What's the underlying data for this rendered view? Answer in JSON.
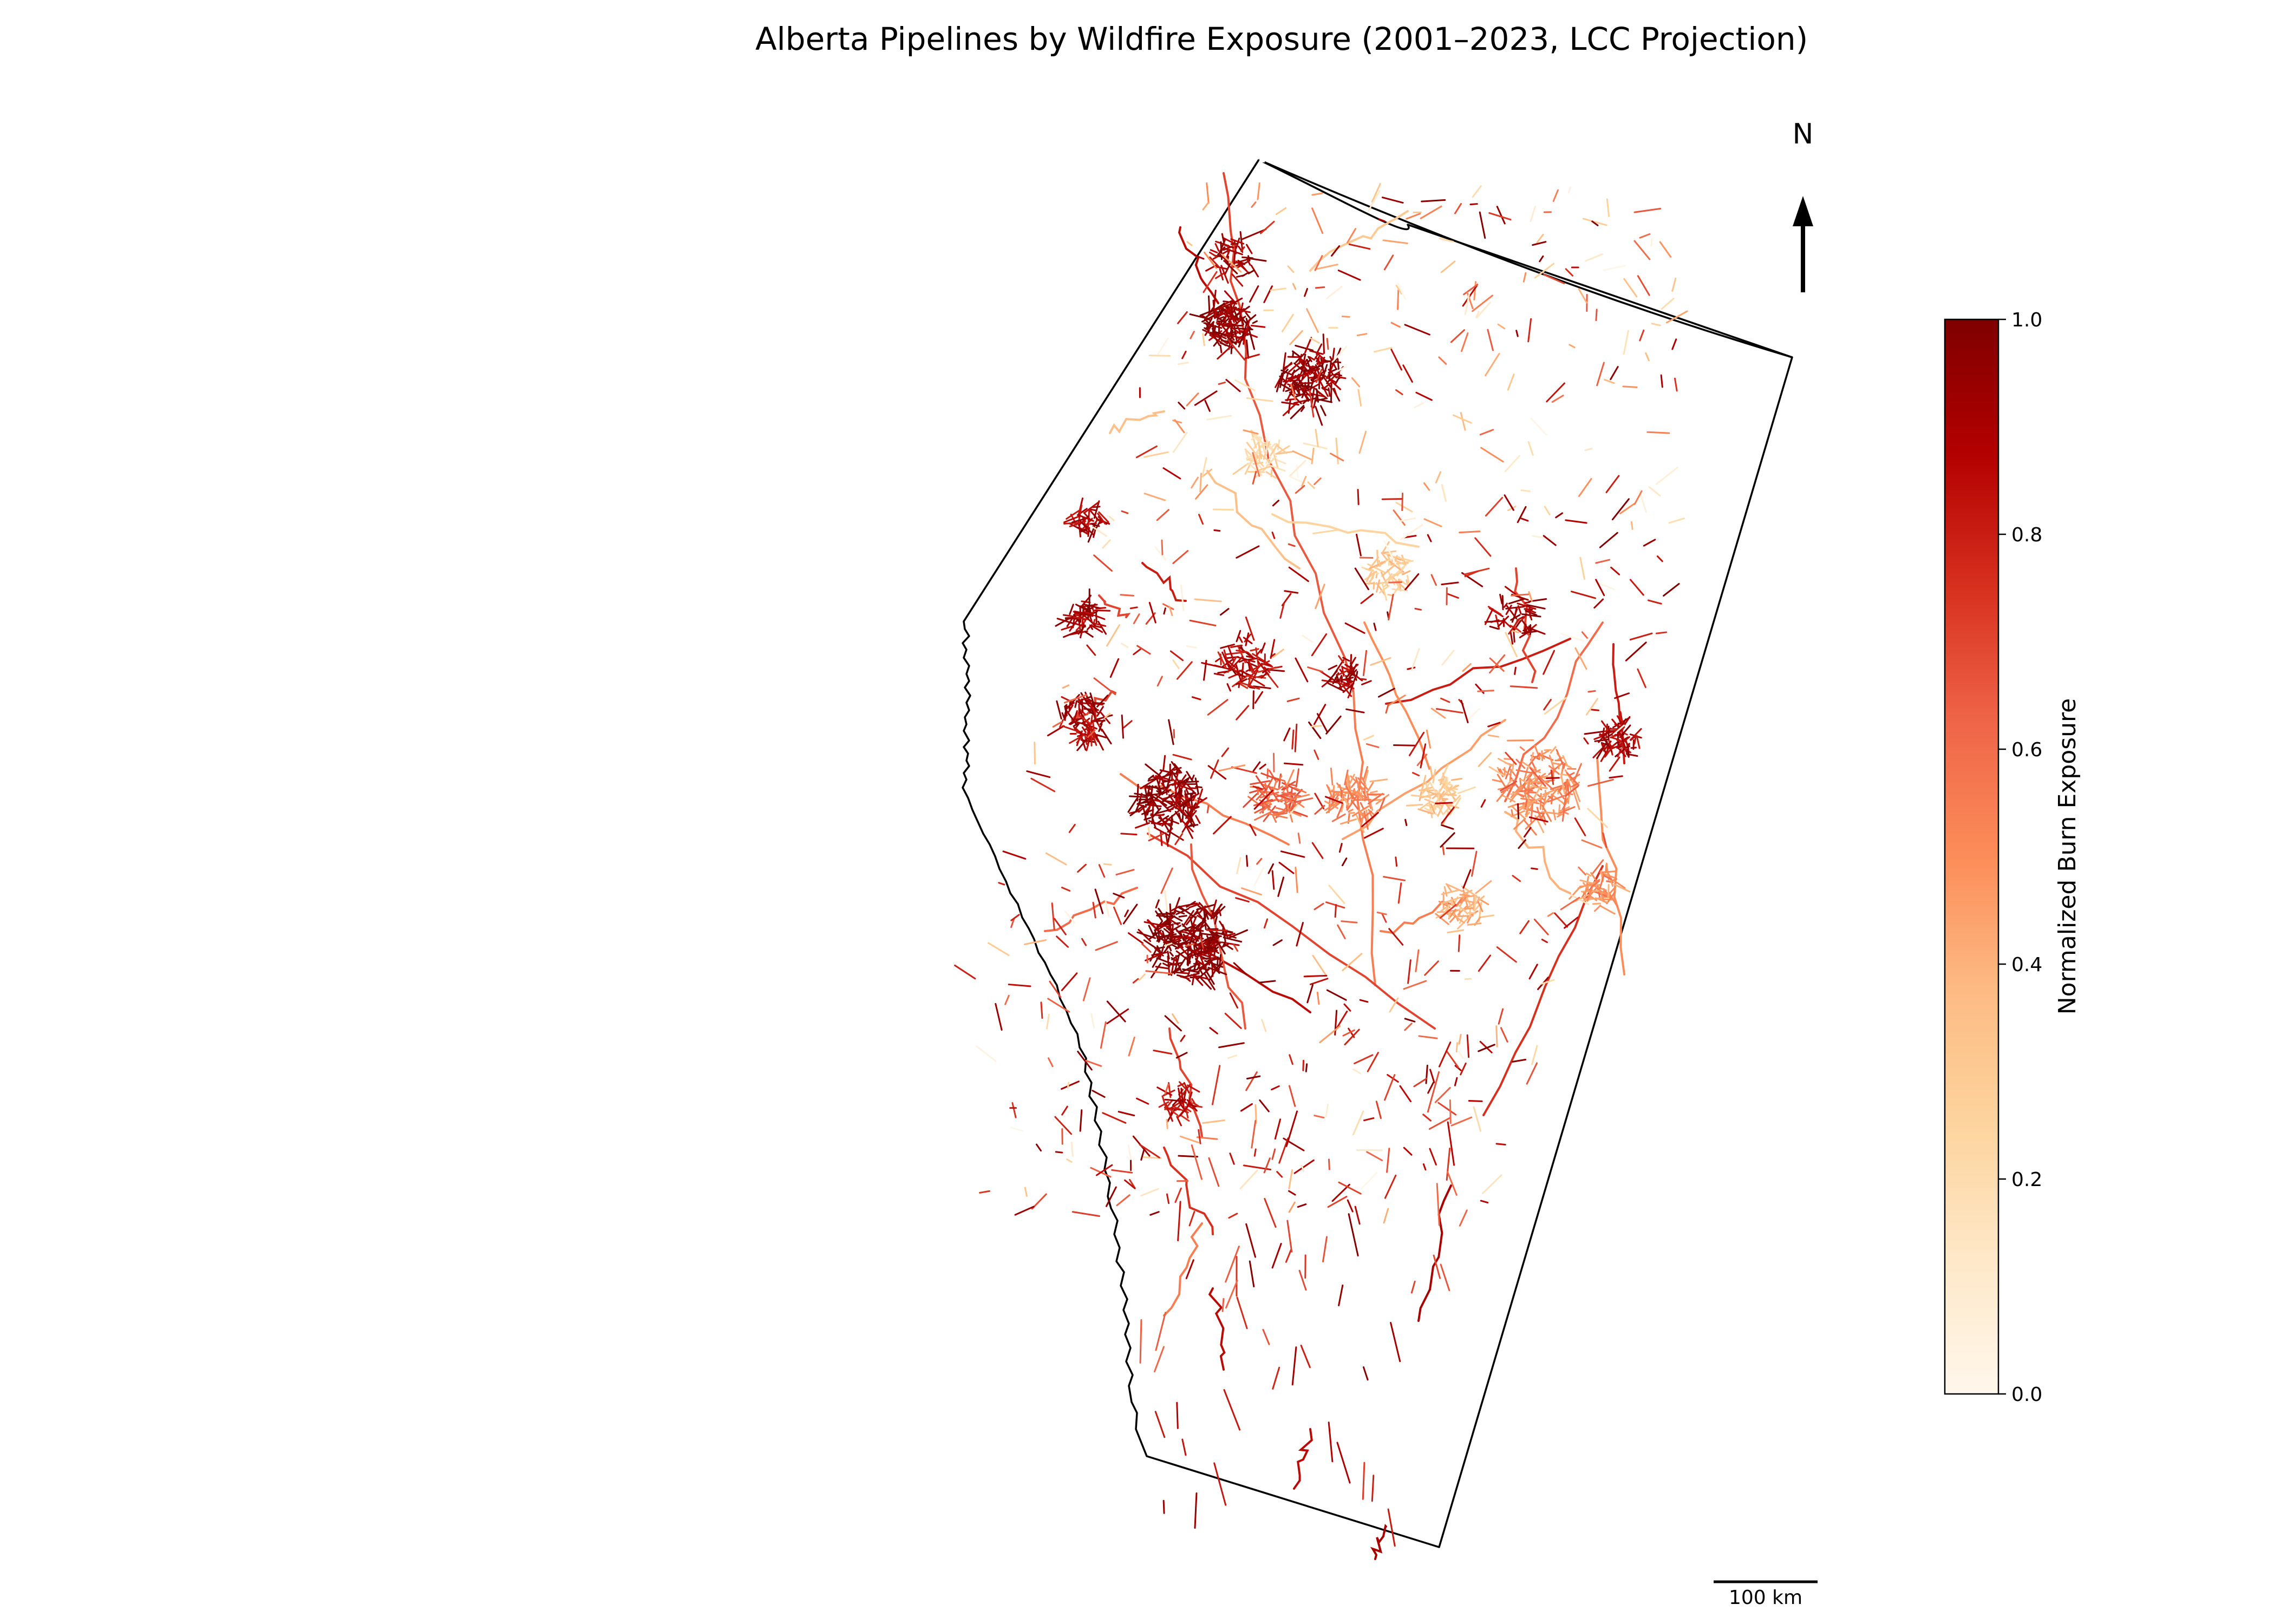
{
  "title": "Alberta Pipelines by Wildfire Exposure (2001–2023, LCC Projection)",
  "north_arrow": {
    "label": "N"
  },
  "scale_bar": {
    "label": "100 km",
    "distance_km": 100
  },
  "colorbar": {
    "label": "Normalized Burn Exposure",
    "colormap": "OrRd",
    "min": 0.0,
    "max": 1.0,
    "ticks": [
      "0.0",
      "0.2",
      "0.4",
      "0.6",
      "0.8",
      "1.0"
    ],
    "stops": [
      "#fff7ec",
      "#fee8c8",
      "#fdd49e",
      "#fdbb84",
      "#fc8d59",
      "#ef6548",
      "#d7301f",
      "#b30000",
      "#7f0000"
    ]
  },
  "map": {
    "region": "Alberta",
    "feature": "pipelines",
    "high_exposure_color": "#7f0000",
    "low_exposure_color": "#fee8c8",
    "boundary_color": "#000000"
  }
}
